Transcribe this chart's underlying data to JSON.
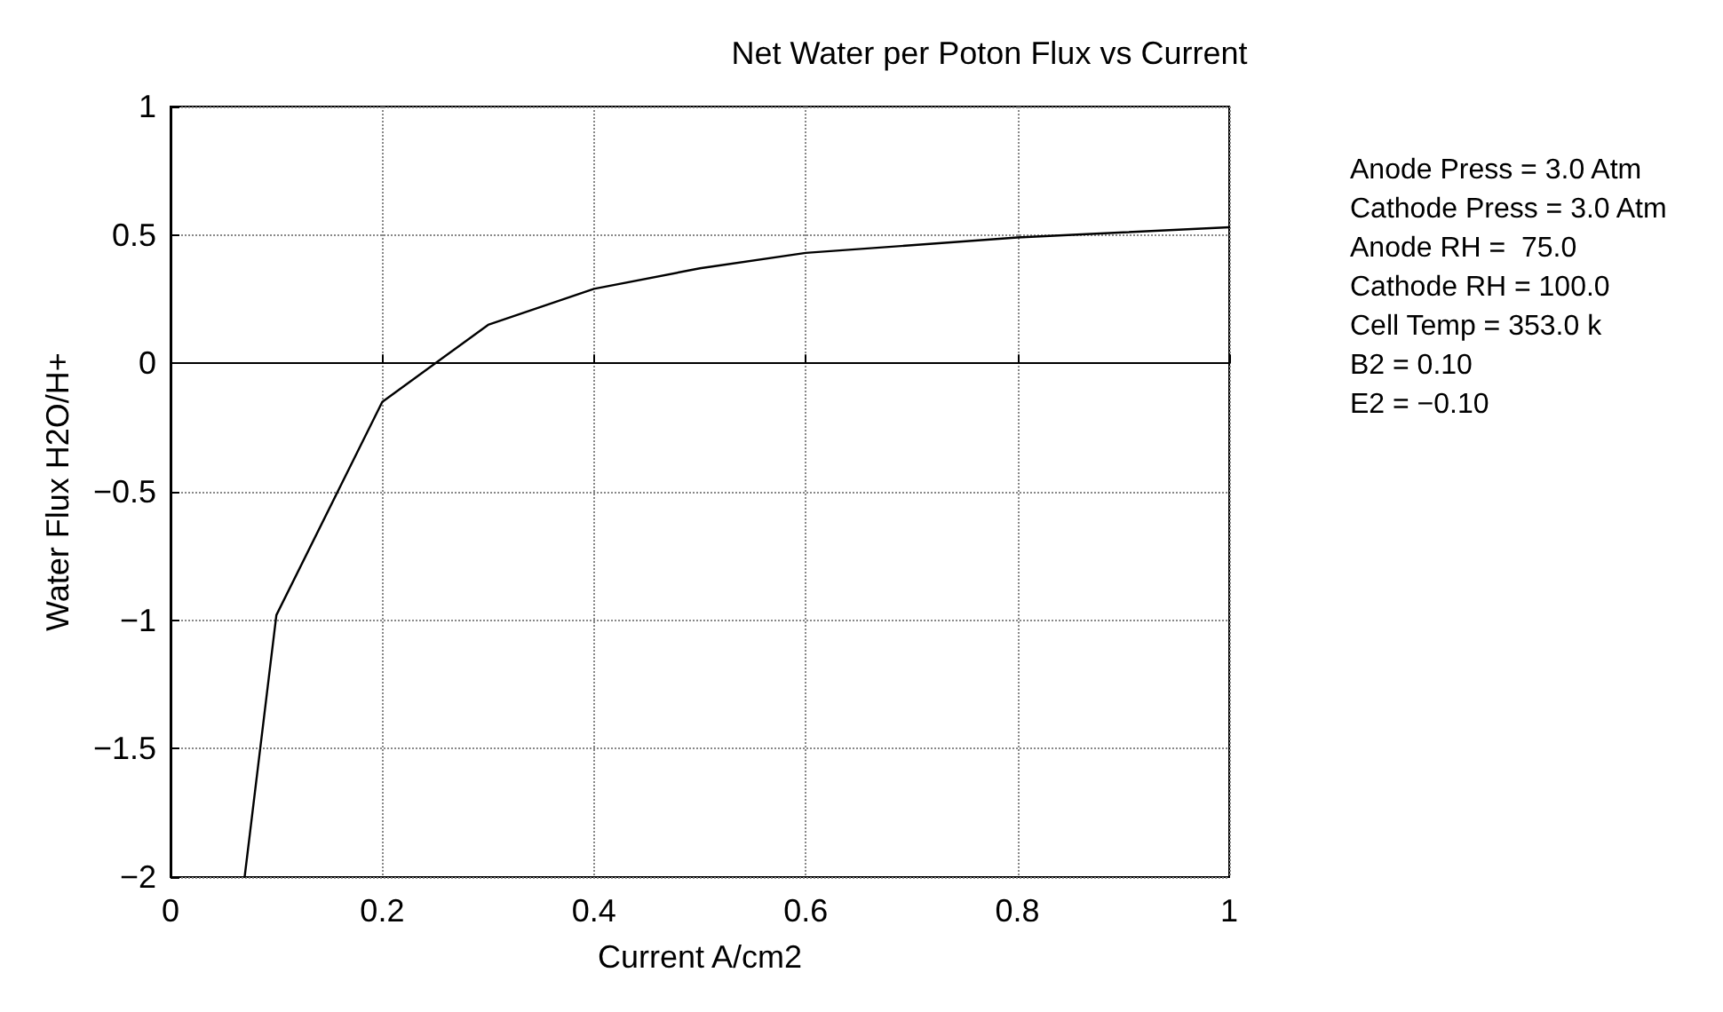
{
  "chart_data": {
    "type": "line",
    "title": "Net Water per Poton Flux vs Current",
    "xlabel": "Current A/cm2",
    "ylabel": "Water Flux H2O/H+",
    "x": [
      0.07,
      0.1,
      0.2,
      0.3,
      0.4,
      0.5,
      0.6,
      0.7,
      0.8,
      0.9,
      1.0
    ],
    "series": [
      {
        "color": "#000000",
        "values": [
          -2,
          -0.98,
          -0.15,
          0.15,
          0.29,
          0.37,
          0.43,
          0.46,
          0.49,
          0.51,
          0.53
        ]
      }
    ],
    "xlim": [
      0,
      1
    ],
    "xticks": [
      0,
      0.2,
      0.4,
      0.6,
      0.8,
      1
    ],
    "ylim": [
      -2,
      1
    ],
    "yticks": [
      -2,
      -1.5,
      -1,
      -0.5,
      0,
      0.5,
      1
    ],
    "grid": true,
    "marker": "none",
    "line_style": "solid",
    "annotations": [
      "Anode Press = 3.0 Atm",
      "Cathode Press = 3.0 Atm",
      "Anode RH =  75.0",
      "Cathode RH = 100.0",
      "Cell Temp = 353.0 k",
      "B2 = 0.10",
      "E2 = −0.10"
    ]
  }
}
